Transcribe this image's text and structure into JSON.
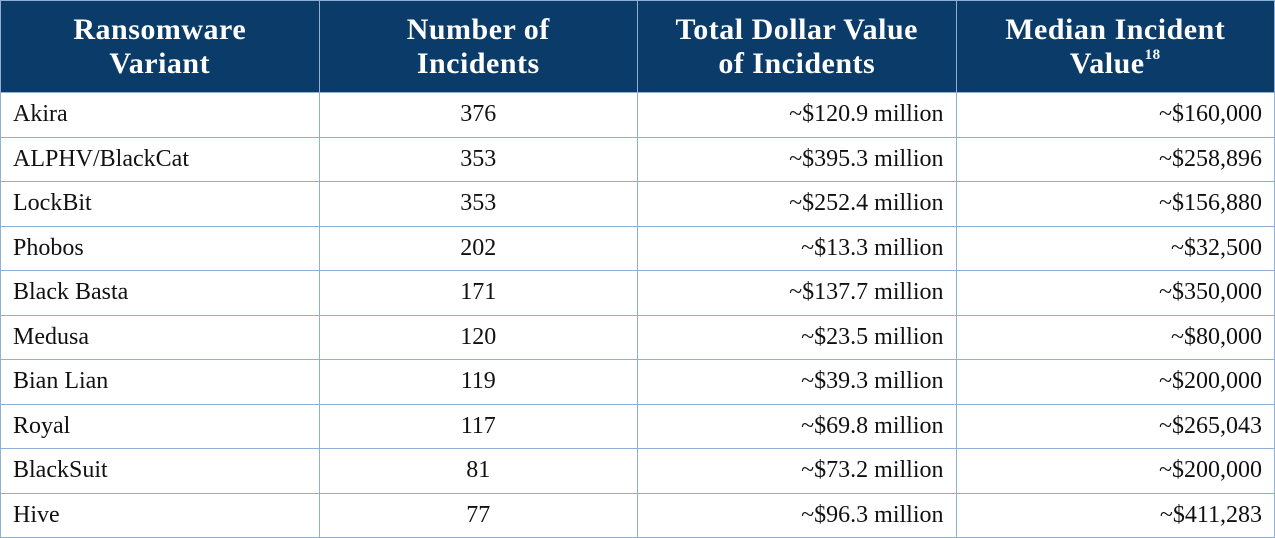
{
  "table": {
    "headers": [
      {
        "text": "Ransomware Variant"
      },
      {
        "text": "Number of Incidents"
      },
      {
        "text": "Total Dollar Value of Incidents"
      },
      {
        "text": "Median Incident Value",
        "footnote": "18"
      }
    ],
    "rows": [
      [
        "Akira",
        376,
        "~$120.9 million",
        "~$160,000"
      ],
      [
        "ALPHV/BlackCat",
        353,
        "~$395.3 million",
        "~$258,896"
      ],
      [
        "LockBit",
        353,
        "~$252.4 million",
        "~$156,880"
      ],
      [
        "Phobos",
        202,
        "~$13.3 million",
        "~$32,500"
      ],
      [
        "Black Basta",
        171,
        "~$137.7 million",
        "~$350,000"
      ],
      [
        "Medusa",
        120,
        "~$23.5 million",
        "~$80,000"
      ],
      [
        "Bian Lian",
        119,
        "~$39.3 million",
        "~$200,000"
      ],
      [
        "Royal",
        117,
        "~$69.8 million",
        "~$265,043"
      ],
      [
        "BlackSuit",
        81,
        "~$73.2 million",
        "~$200,000"
      ],
      [
        "Hive",
        77,
        "~$96.3 million",
        "~$411,283"
      ]
    ]
  }
}
